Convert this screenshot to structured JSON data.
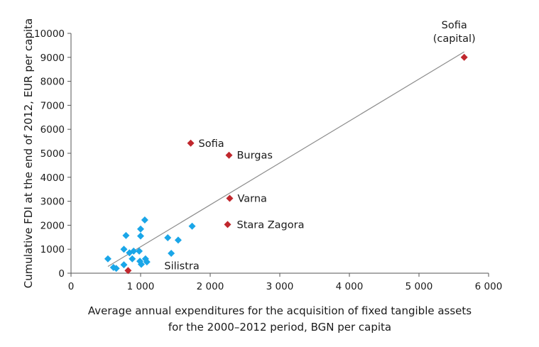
{
  "chart_data": {
    "type": "scatter",
    "title": "",
    "xlabel_lines": [
      "Average annual expenditures for the acquisition of fixed tangible assets",
      "for the 2000–2012 period, BGN per capita"
    ],
    "ylabel": "Cumulative FDI at the end of 2012, EUR per capita",
    "xlim": [
      0,
      6000
    ],
    "ylim": [
      0,
      10000
    ],
    "x_ticks": [
      0,
      1000,
      2000,
      3000,
      4000,
      5000,
      6000
    ],
    "x_tick_labels": [
      "0",
      "1 000",
      "2 000",
      "3 000",
      "4 000",
      "5 000",
      "6 000"
    ],
    "y_ticks": [
      0,
      1000,
      2000,
      3000,
      4000,
      5000,
      6000,
      7000,
      8000,
      9000,
      10000
    ],
    "y_tick_labels": [
      "0",
      "1000",
      "2000",
      "3000",
      "4000",
      "5000",
      "6000",
      "7000",
      "8000",
      "9000",
      "10000"
    ],
    "grid": false,
    "legend": "none",
    "series": [
      {
        "color": "#1aa6e8",
        "marker": "diamond",
        "points": [
          [
            530,
            600
          ],
          [
            610,
            240
          ],
          [
            650,
            200
          ],
          [
            760,
            350
          ],
          [
            760,
            1000
          ],
          [
            790,
            1570
          ],
          [
            840,
            850
          ],
          [
            880,
            600
          ],
          [
            900,
            920
          ],
          [
            980,
            920
          ],
          [
            990,
            500
          ],
          [
            1000,
            1840
          ],
          [
            1000,
            1550
          ],
          [
            1010,
            370
          ],
          [
            1060,
            2220
          ],
          [
            1070,
            600
          ],
          [
            1090,
            470
          ],
          [
            1390,
            1480
          ],
          [
            1440,
            830
          ],
          [
            1540,
            1380
          ],
          [
            1740,
            1960
          ]
        ]
      },
      {
        "color": "#c0272d",
        "marker": "diamond",
        "points": [
          [
            5650,
            9000
          ],
          [
            1720,
            5420
          ],
          [
            2270,
            4920
          ],
          [
            2280,
            3120
          ],
          [
            2250,
            2030
          ],
          [
            820,
            110
          ]
        ]
      }
    ],
    "trendline": {
      "color": "#8c8c8c",
      "from": [
        530,
        280
      ],
      "to": [
        5650,
        9230
      ]
    },
    "annotations": [
      {
        "lines": [
          "Sofia",
          "(capital)"
        ],
        "x": 5650,
        "y": 9000
      },
      {
        "lines": [
          "Sofia"
        ],
        "x": 1720,
        "y": 5420
      },
      {
        "lines": [
          "Burgas"
        ],
        "x": 2270,
        "y": 4920
      },
      {
        "lines": [
          "Varna"
        ],
        "x": 2280,
        "y": 3120
      },
      {
        "lines": [
          "Stara Zagora"
        ],
        "x": 2250,
        "y": 2030
      },
      {
        "lines": [
          "Silistra"
        ],
        "x": 820,
        "y": 110
      }
    ]
  }
}
